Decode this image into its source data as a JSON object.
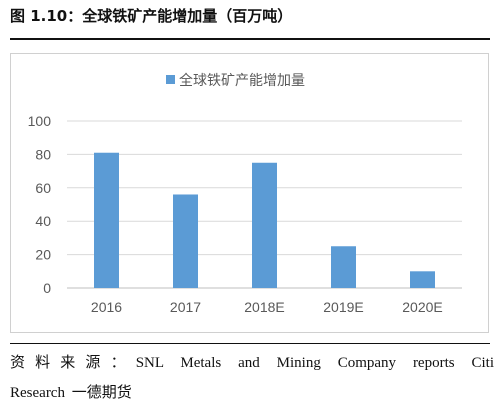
{
  "figure": {
    "title": "图 1.10：全球铁矿产能增加量（百万吨）"
  },
  "source": {
    "label": "资料来源：",
    "text": "SNL Metals and Mining    Company reports    Citi",
    "text_line2": "Research 一德期货"
  },
  "chart_data": {
    "type": "bar",
    "categories": [
      "2016",
      "2017",
      "2018E",
      "2019E",
      "2020E"
    ],
    "series": [
      {
        "name": "全球铁矿产能增加量",
        "values": [
          81,
          56,
          75,
          25,
          10
        ],
        "color": "#5B9BD5"
      }
    ],
    "ylim": [
      0,
      100
    ],
    "yticks": [
      "0",
      "20",
      "40",
      "60",
      "80",
      "100"
    ],
    "grid": true,
    "legend_position": "top"
  }
}
